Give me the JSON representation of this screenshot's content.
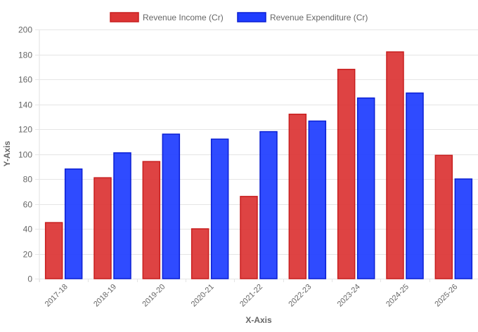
{
  "chart_data": {
    "type": "bar",
    "title": "",
    "xlabel": "X-Axis",
    "ylabel": "Y-Axis",
    "ylim": [
      0,
      200
    ],
    "yticks": [
      0,
      20,
      40,
      60,
      80,
      100,
      120,
      140,
      160,
      180,
      200
    ],
    "grid": true,
    "legend_position": "top",
    "categories": [
      "2017-18",
      "2018-19",
      "2019-20",
      "2020-21",
      "2021-22",
      "2022-23",
      "2023-24",
      "2024-25",
      "2025-26"
    ],
    "series": [
      {
        "name": "Revenue Income (Cr)",
        "fill": "#dc3535",
        "border": "#c81e1e",
        "values": [
          45,
          81,
          94,
          40,
          66,
          132,
          168,
          182,
          99
        ]
      },
      {
        "name": "Revenue Expenditure (Cr)",
        "fill": "#1f3dff",
        "border": "#0a1fd4",
        "values": [
          88,
          101,
          116,
          112,
          118,
          126.5,
          145,
          149,
          80
        ]
      }
    ]
  }
}
